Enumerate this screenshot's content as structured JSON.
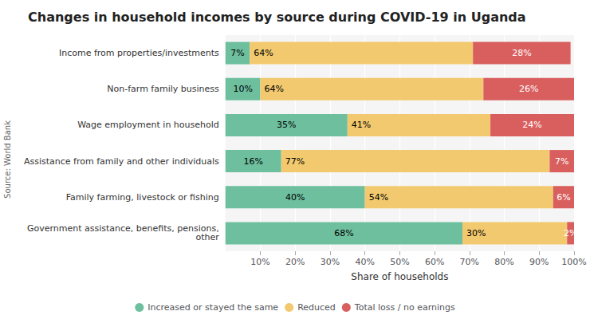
{
  "chart_data": {
    "type": "bar",
    "orientation": "horizontal",
    "stacked": true,
    "title": "Changes in household incomes by source during COVID-19 in Uganda",
    "annotation": "Source: World Bank",
    "xlabel": "Share of households",
    "categories": [
      "Income from properties/investments",
      "Non-farm family business",
      "Wage employment in household",
      "Assistance from family and other individuals",
      "Family farming, livestock or fishing",
      "Government assistance, benefits, pensions,\nother"
    ],
    "series": [
      {
        "name": "Increased or stayed the same",
        "color": "#6dbf9e",
        "values": [
          7,
          10,
          35,
          16,
          40,
          68
        ],
        "value_labels": [
          "7%",
          "10%",
          "35%",
          "16%",
          "40%",
          "68%"
        ]
      },
      {
        "name": "Reduced",
        "color": "#f2c96e",
        "values": [
          64,
          64,
          41,
          77,
          54,
          30
        ],
        "value_labels": [
          "64%",
          "64%",
          "41%",
          "77%",
          "54%",
          "30%"
        ]
      },
      {
        "name": "Total loss / no earnings",
        "color": "#d95f5f",
        "values": [
          28,
          26,
          24,
          7,
          6,
          2
        ],
        "value_labels": [
          "28%",
          "26%",
          "24%",
          "7%",
          "6%",
          "2%"
        ]
      }
    ],
    "xlim": [
      0,
      100
    ],
    "xticks": [
      {
        "value": 10,
        "label": "10%"
      },
      {
        "value": 20,
        "label": "20%"
      },
      {
        "value": 30,
        "label": "30%"
      },
      {
        "value": 40,
        "label": "40%"
      },
      {
        "value": 50,
        "label": "50%"
      },
      {
        "value": 60,
        "label": "60%"
      },
      {
        "value": 70,
        "label": "70%"
      },
      {
        "value": 80,
        "label": "80%"
      },
      {
        "value": 90,
        "label": "90%"
      },
      {
        "value": 100,
        "label": "100%"
      }
    ],
    "grid": true,
    "legend": "bottom",
    "data_labels": true
  }
}
